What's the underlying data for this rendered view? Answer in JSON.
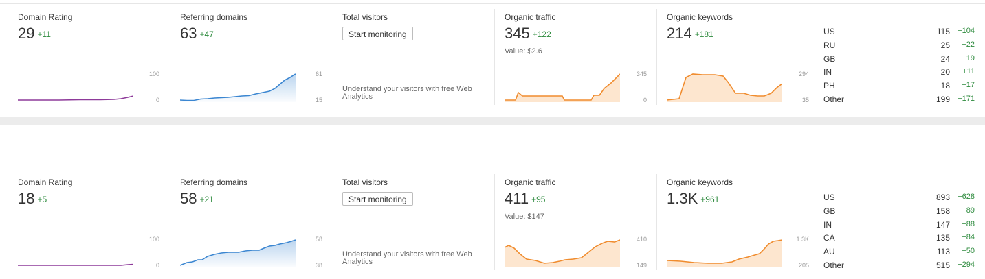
{
  "colors": {
    "domain_rating_line": "#8e3a9a",
    "referring_domains_line": "#3b86d1",
    "organic_line": "#f08c2e",
    "organic_fill": "#fde6cf",
    "delta_green": "#2e8b3e"
  },
  "rows": [
    {
      "domain_rating": {
        "label": "Domain Rating",
        "value": "29",
        "delta": "+11",
        "axis_top": "100",
        "axis_bottom": "0"
      },
      "referring_domains": {
        "label": "Referring domains",
        "value": "63",
        "delta": "+47",
        "axis_top": "61",
        "axis_bottom": "15"
      },
      "total_visitors": {
        "label": "Total visitors",
        "button": "Start monitoring",
        "hint": "Understand your visitors with free Web Analytics"
      },
      "organic_traffic": {
        "label": "Organic traffic",
        "value": "345",
        "delta": "+122",
        "sub": "Value: $2.6",
        "axis_top": "345",
        "axis_bottom": "0"
      },
      "organic_keywords": {
        "label": "Organic keywords",
        "value": "214",
        "delta": "+181",
        "axis_top": "294",
        "axis_bottom": "35"
      },
      "countries": [
        {
          "code": "US",
          "value": "115",
          "delta": "+104"
        },
        {
          "code": "RU",
          "value": "25",
          "delta": "+22"
        },
        {
          "code": "GB",
          "value": "24",
          "delta": "+19"
        },
        {
          "code": "IN",
          "value": "20",
          "delta": "+11"
        },
        {
          "code": "PH",
          "value": "18",
          "delta": "+17"
        },
        {
          "code": "Other",
          "value": "199",
          "delta": "+171"
        }
      ]
    },
    {
      "domain_rating": {
        "label": "Domain Rating",
        "value": "18",
        "delta": "+5",
        "axis_top": "100",
        "axis_bottom": "0"
      },
      "referring_domains": {
        "label": "Referring domains",
        "value": "58",
        "delta": "+21",
        "axis_top": "58",
        "axis_bottom": "38"
      },
      "total_visitors": {
        "label": "Total visitors",
        "button": "Start monitoring",
        "hint": "Understand your visitors with free Web Analytics"
      },
      "organic_traffic": {
        "label": "Organic traffic",
        "value": "411",
        "delta": "+95",
        "sub": "Value: $147",
        "axis_top": "410",
        "axis_bottom": "149"
      },
      "organic_keywords": {
        "label": "Organic keywords",
        "value": "1.3K",
        "delta": "+961",
        "axis_top": "1.3K",
        "axis_bottom": "205"
      },
      "countries": [
        {
          "code": "US",
          "value": "893",
          "delta": "+628"
        },
        {
          "code": "GB",
          "value": "158",
          "delta": "+89"
        },
        {
          "code": "IN",
          "value": "147",
          "delta": "+88"
        },
        {
          "code": "CA",
          "value": "135",
          "delta": "+84"
        },
        {
          "code": "AU",
          "value": "113",
          "delta": "+50"
        },
        {
          "code": "Other",
          "value": "515",
          "delta": "+294"
        }
      ]
    }
  ]
}
